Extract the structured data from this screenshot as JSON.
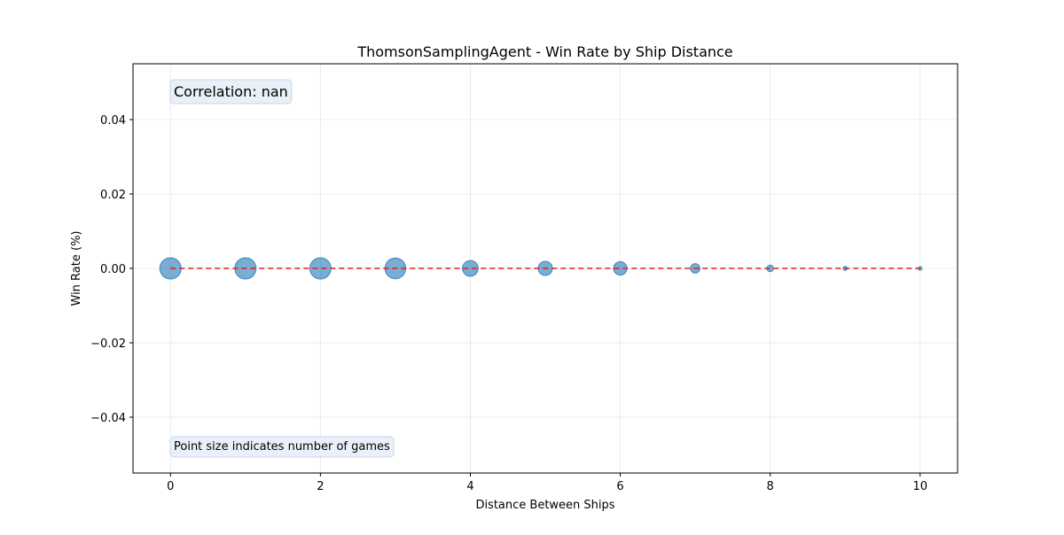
{
  "chart_data": {
    "type": "scatter",
    "title": "ThomsonSamplingAgent - Win Rate by Ship Distance",
    "xlabel": "Distance Between Ships",
    "ylabel": "Win Rate (%)",
    "xlim": [
      -0.5,
      10.5
    ],
    "ylim": [
      -0.055,
      0.055
    ],
    "xticks": [
      0,
      2,
      4,
      6,
      8,
      10
    ],
    "yticks": [
      -0.04,
      -0.02,
      0.0,
      0.02,
      0.04
    ],
    "ytick_labels": [
      "−0.04",
      "−0.02",
      "0.00",
      "0.02",
      "0.04"
    ],
    "grid": true,
    "series": [
      {
        "x": [
          0,
          1,
          2,
          3,
          4,
          5,
          6,
          7,
          8,
          9,
          10
        ],
        "y": [
          0,
          0,
          0,
          0,
          0,
          0,
          0,
          0,
          0,
          0,
          0
        ],
        "size": [
          100,
          100,
          100,
          95,
          55,
          45,
          40,
          20,
          10,
          4,
          3
        ],
        "color": "#1f77b4"
      }
    ],
    "trendline": {
      "x": [
        0,
        10
      ],
      "y": [
        0,
        0
      ],
      "color": "#e41a1c",
      "style": "dashed"
    },
    "annotations": {
      "correlation": "Correlation: nan",
      "size_note": "Point size indicates number of games"
    }
  }
}
